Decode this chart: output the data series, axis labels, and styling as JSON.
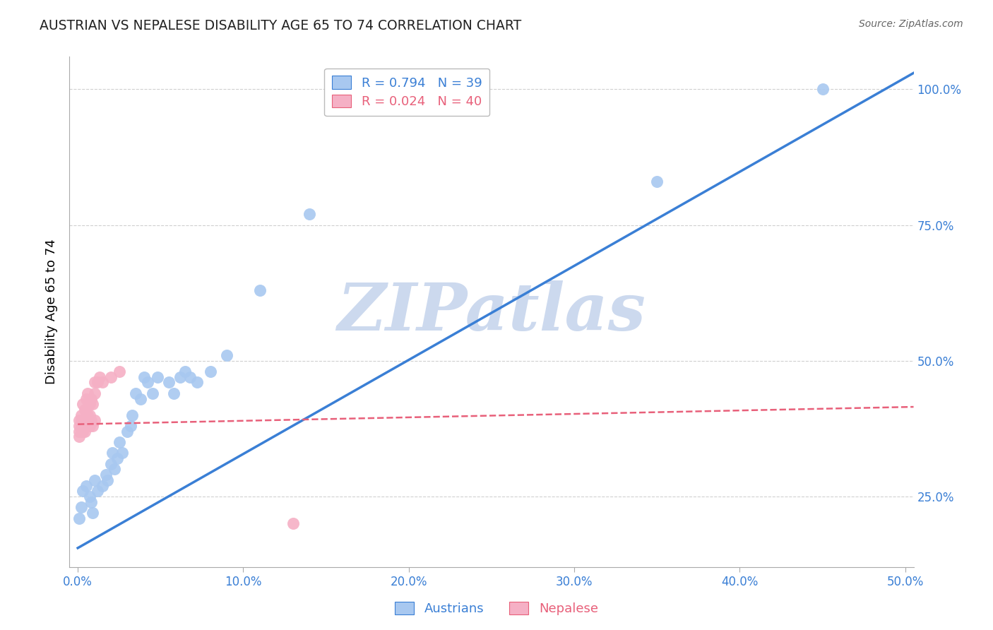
{
  "title": "AUSTRIAN VS NEPALESE DISABILITY AGE 65 TO 74 CORRELATION CHART",
  "source": "Source: ZipAtlas.com",
  "ylabel_label": "Disability Age 65 to 74",
  "xlim": [
    -0.005,
    0.505
  ],
  "ylim": [
    0.12,
    1.06
  ],
  "legend_blue_R": "R = 0.794",
  "legend_blue_N": "N = 39",
  "legend_pink_R": "R = 0.024",
  "legend_pink_N": "N = 40",
  "legend_label_blue": "Austrians",
  "legend_label_pink": "Nepalese",
  "blue_scatter_color": "#a8c8f0",
  "pink_scatter_color": "#f5b0c5",
  "blue_line_color": "#3a7fd5",
  "pink_line_color": "#e8607a",
  "watermark": "ZIPatlas",
  "watermark_color": "#ccd9ee",
  "grid_color": "#d0d0d0",
  "austrians_x": [
    0.001,
    0.002,
    0.003,
    0.005,
    0.007,
    0.008,
    0.009,
    0.01,
    0.012,
    0.015,
    0.017,
    0.018,
    0.02,
    0.021,
    0.022,
    0.024,
    0.025,
    0.027,
    0.03,
    0.032,
    0.033,
    0.035,
    0.038,
    0.04,
    0.042,
    0.045,
    0.048,
    0.055,
    0.058,
    0.062,
    0.065,
    0.068,
    0.072,
    0.08,
    0.09,
    0.11,
    0.14,
    0.35,
    0.45
  ],
  "austrians_y": [
    0.21,
    0.23,
    0.26,
    0.27,
    0.25,
    0.24,
    0.22,
    0.28,
    0.26,
    0.27,
    0.29,
    0.28,
    0.31,
    0.33,
    0.3,
    0.32,
    0.35,
    0.33,
    0.37,
    0.38,
    0.4,
    0.44,
    0.43,
    0.47,
    0.46,
    0.44,
    0.47,
    0.46,
    0.44,
    0.47,
    0.48,
    0.47,
    0.46,
    0.48,
    0.51,
    0.63,
    0.77,
    0.83,
    1.0
  ],
  "nepalese_x": [
    0.001,
    0.001,
    0.001,
    0.001,
    0.002,
    0.002,
    0.002,
    0.002,
    0.003,
    0.003,
    0.003,
    0.004,
    0.004,
    0.004,
    0.004,
    0.005,
    0.005,
    0.005,
    0.005,
    0.005,
    0.006,
    0.006,
    0.006,
    0.006,
    0.007,
    0.007,
    0.007,
    0.008,
    0.008,
    0.009,
    0.009,
    0.01,
    0.01,
    0.01,
    0.012,
    0.013,
    0.015,
    0.02,
    0.025,
    0.13
  ],
  "nepalese_y": [
    0.36,
    0.37,
    0.38,
    0.39,
    0.37,
    0.38,
    0.39,
    0.4,
    0.37,
    0.38,
    0.42,
    0.37,
    0.38,
    0.39,
    0.41,
    0.38,
    0.39,
    0.4,
    0.41,
    0.43,
    0.38,
    0.39,
    0.4,
    0.44,
    0.38,
    0.4,
    0.42,
    0.39,
    0.43,
    0.38,
    0.42,
    0.39,
    0.44,
    0.46,
    0.46,
    0.47,
    0.46,
    0.47,
    0.48,
    0.2
  ],
  "blue_line_x0": 0.0,
  "blue_line_y0": 0.155,
  "blue_line_x1": 0.505,
  "blue_line_y1": 1.03,
  "pink_line_x0": 0.0,
  "pink_line_y0": 0.383,
  "pink_line_x1": 0.505,
  "pink_line_y1": 0.415
}
